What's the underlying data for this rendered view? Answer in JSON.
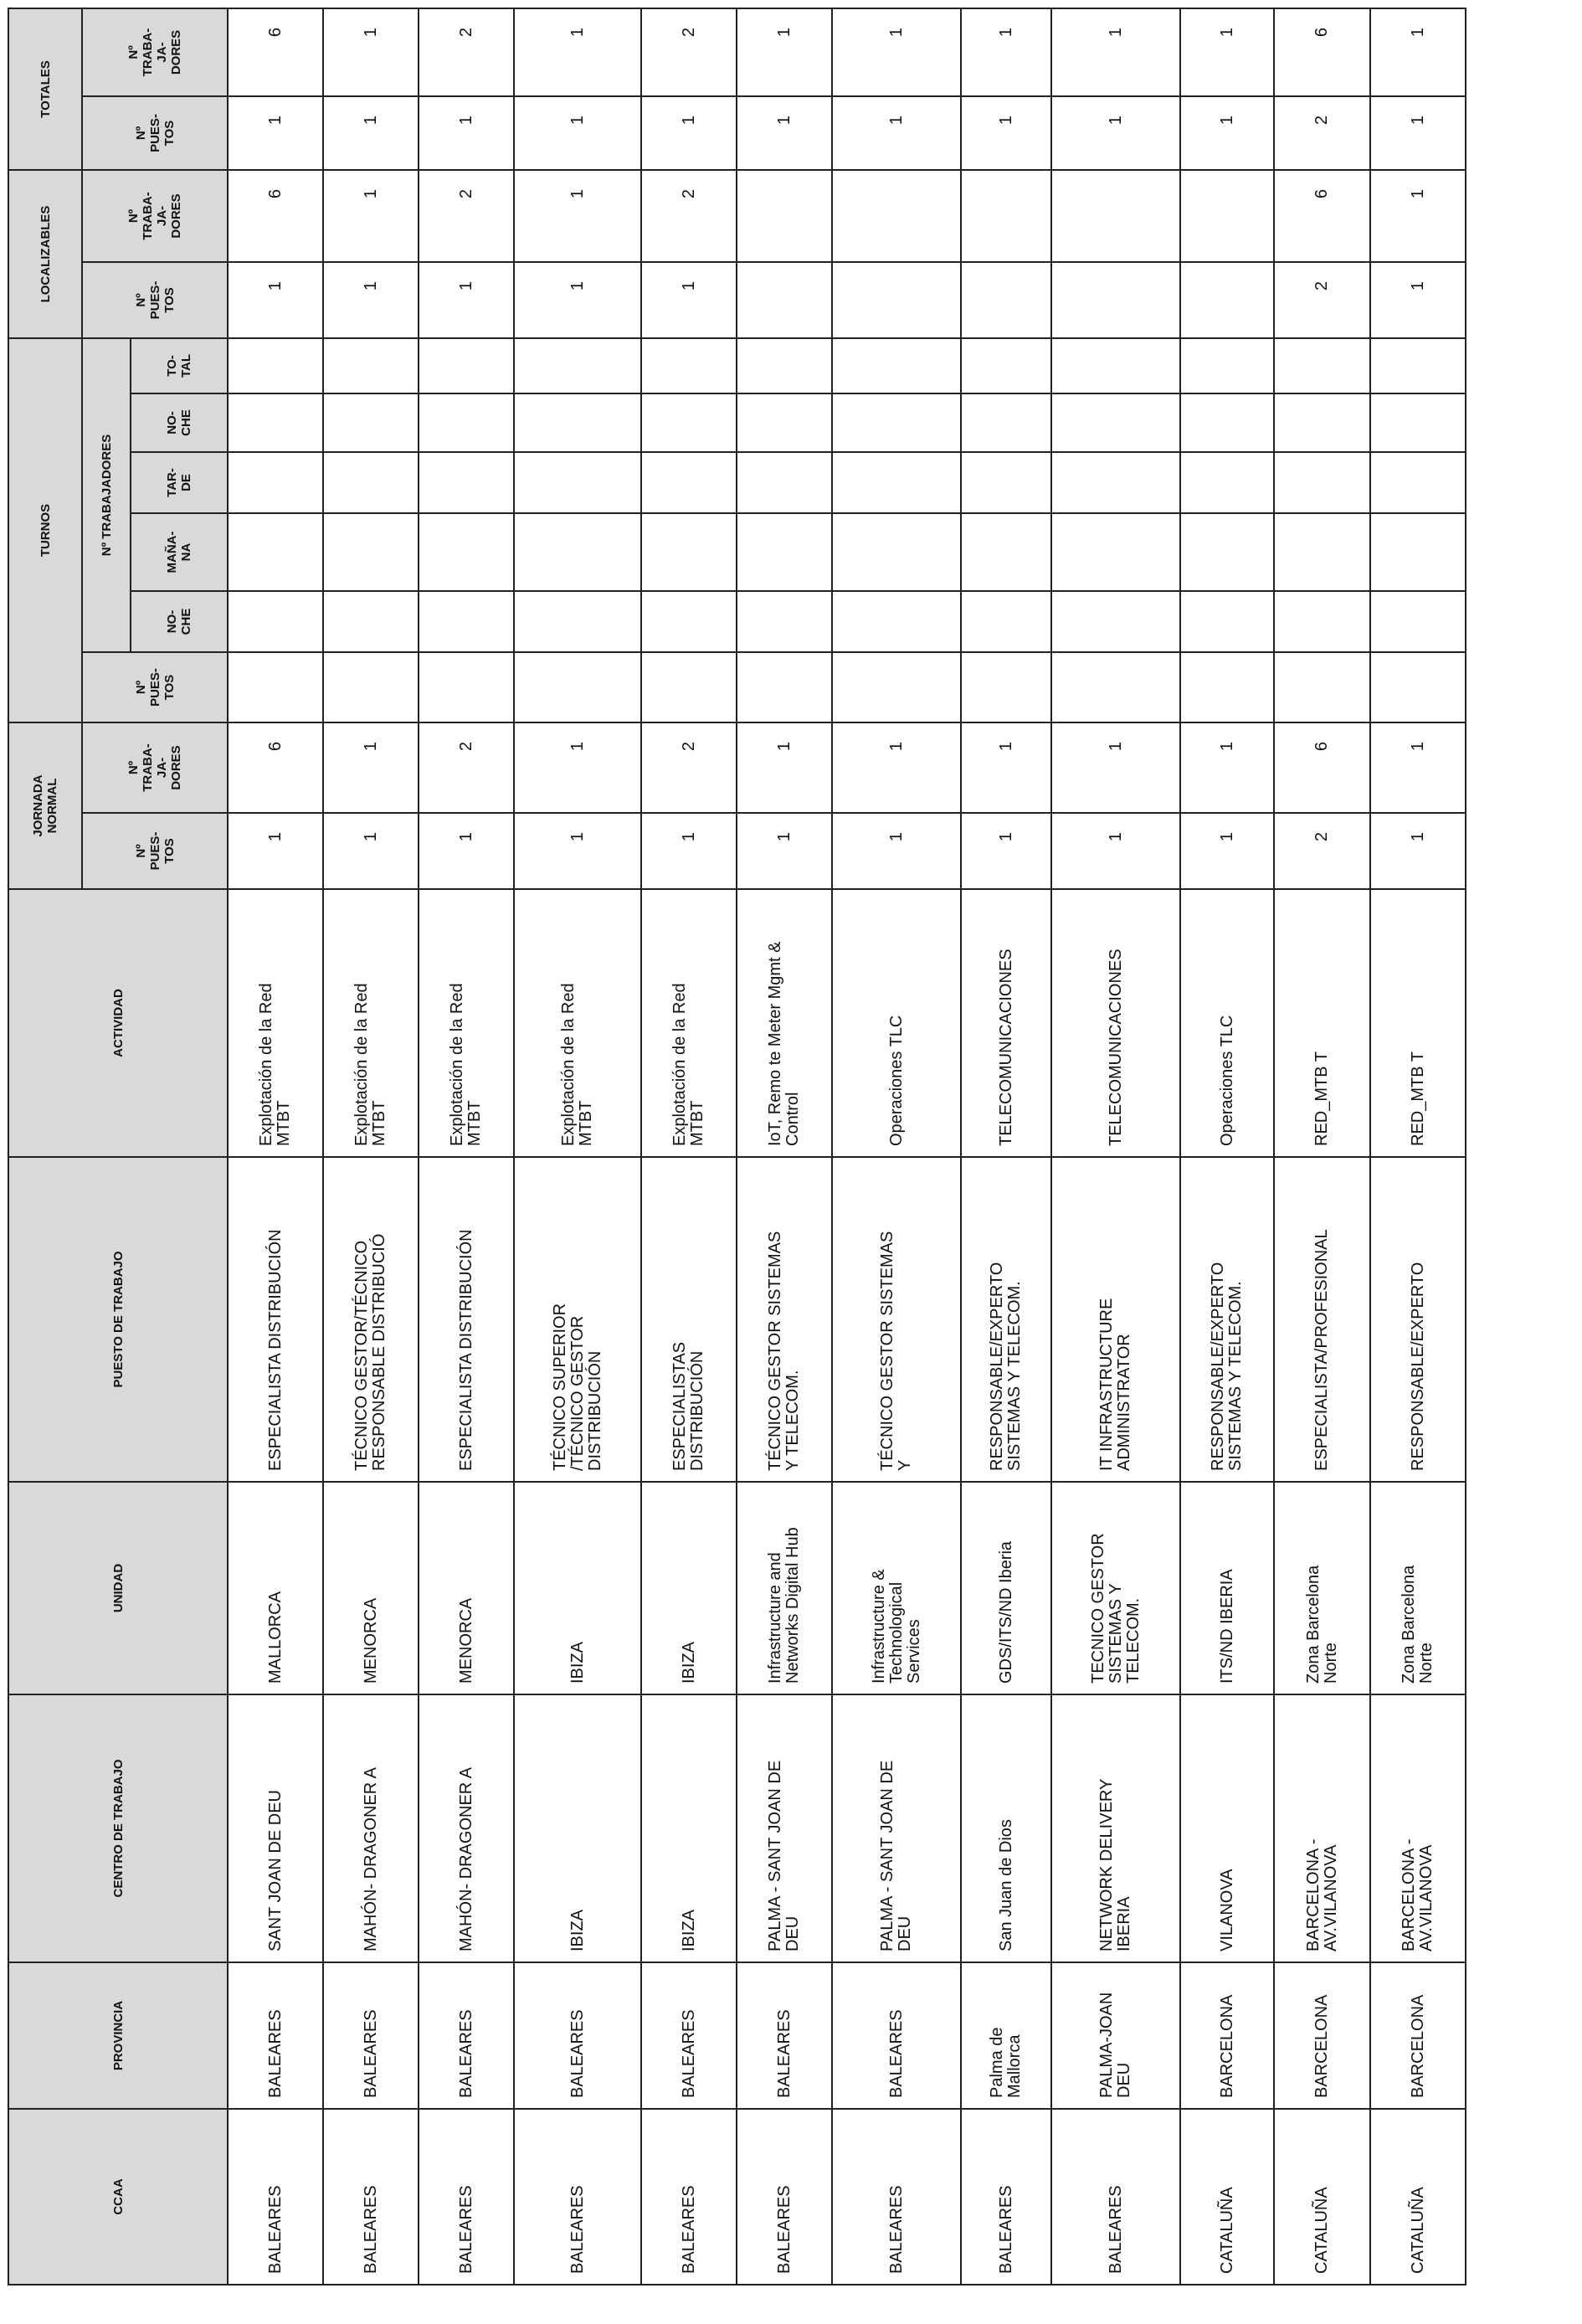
{
  "headers": {
    "ccaa": "CCAA",
    "provincia": "PROVINCIA",
    "centro": "CENTRO DE TRABAJO",
    "unidad": "UNIDAD",
    "puesto": "PUESTO DE TRABAJO",
    "actividad": "ACTIVIDAD",
    "jornada": "JORNADA\nNORMAL",
    "turnos": "TURNOS",
    "localizables": "LOCALIZABLES",
    "totales": "TOTALES",
    "n_puestos": "Nº\nPUES-\nTOS",
    "n_trabajadores": "Nº\nTRABA-\nJA-\nDORES",
    "n_trabajadores_group": "Nº TRABAJADORES",
    "noche": "NO-\nCHE",
    "manana": "MAÑA-\nNA",
    "tarde": "TAR-\nDE",
    "total": "TO-\nTAL"
  },
  "rows": [
    {
      "ccaa": "BALEARES",
      "provincia": "BALEARES",
      "centro": "SANT JOAN DE DEU",
      "unidad": "MALLORCA",
      "puesto": "ESPECIALISTA DISTRIBUCIÓN",
      "actividad": "Explotación de la Red\nMTBT",
      "jn_puestos": "1",
      "jn_trab": "6",
      "t_puestos": "",
      "t_noche1": "",
      "t_manana": "",
      "t_tarde": "",
      "t_noche2": "",
      "t_total": "",
      "loc_puestos": "1",
      "loc_trab": "6",
      "tot_puestos": "1",
      "tot_trab": "6"
    },
    {
      "ccaa": "BALEARES",
      "provincia": "BALEARES",
      "centro": "MAHÓN- DRAGONER A",
      "unidad": "MENORCA",
      "puesto": "TÉCNICO GESTOR/TÉCNICO\nRESPONSABLE DISTRIBUCIÓ",
      "actividad": "Explotación de la Red\nMTBT",
      "jn_puestos": "1",
      "jn_trab": "1",
      "t_puestos": "",
      "t_noche1": "",
      "t_manana": "",
      "t_tarde": "",
      "t_noche2": "",
      "t_total": "",
      "loc_puestos": "1",
      "loc_trab": "1",
      "tot_puestos": "1",
      "tot_trab": "1"
    },
    {
      "ccaa": "BALEARES",
      "provincia": "BALEARES",
      "centro": "MAHÓN- DRAGONER A",
      "unidad": "MENORCA",
      "puesto": "ESPECIALISTA DISTRIBUCIÓN",
      "actividad": "Explotación de la Red\nMTBT",
      "jn_puestos": "1",
      "jn_trab": "2",
      "t_puestos": "",
      "t_noche1": "",
      "t_manana": "",
      "t_tarde": "",
      "t_noche2": "",
      "t_total": "",
      "loc_puestos": "1",
      "loc_trab": "2",
      "tot_puestos": "1",
      "tot_trab": "2"
    },
    {
      "ccaa": "BALEARES",
      "provincia": "BALEARES",
      "centro": "IBIZA",
      "unidad": "IBIZA",
      "puesto": "TÉCNICO SUPERIOR\n/TÉCNICO GESTOR\nDISTRIBUCIÓN",
      "actividad": "Explotación de la Red\nMTBT",
      "jn_puestos": "1",
      "jn_trab": "1",
      "t_puestos": "",
      "t_noche1": "",
      "t_manana": "",
      "t_tarde": "",
      "t_noche2": "",
      "t_total": "",
      "loc_puestos": "1",
      "loc_trab": "1",
      "tot_puestos": "1",
      "tot_trab": "1"
    },
    {
      "ccaa": "BALEARES",
      "provincia": "BALEARES",
      "centro": "IBIZA",
      "unidad": "IBIZA",
      "puesto": "ESPECIALISTAS\nDISTRIBUCIÓN",
      "actividad": "Explotación de la Red\nMTBT",
      "jn_puestos": "1",
      "jn_trab": "2",
      "t_puestos": "",
      "t_noche1": "",
      "t_manana": "",
      "t_tarde": "",
      "t_noche2": "",
      "t_total": "",
      "loc_puestos": "1",
      "loc_trab": "2",
      "tot_puestos": "1",
      "tot_trab": "2"
    },
    {
      "ccaa": "BALEARES",
      "provincia": "BALEARES",
      "centro": "PALMA - SANT JOAN DE\nDEU",
      "unidad": "Infrastructure and\nNetworks Digital Hub",
      "puesto": "TÉCNICO GESTOR SISTEMAS\nY TELECOM.",
      "actividad": "IoT, Remo te Meter Mgmt &\nControl",
      "jn_puestos": "1",
      "jn_trab": "1",
      "t_puestos": "",
      "t_noche1": "",
      "t_manana": "",
      "t_tarde": "",
      "t_noche2": "",
      "t_total": "",
      "loc_puestos": "",
      "loc_trab": "",
      "tot_puestos": "1",
      "tot_trab": "1"
    },
    {
      "ccaa": "BALEARES",
      "provincia": "BALEARES",
      "centro": "PALMA - SANT JOAN DE\nDEU",
      "unidad": "Infrastructure &\nTechnological\nServices",
      "puesto": "TÉCNICO GESTOR SISTEMAS\nY",
      "actividad": "Operaciones TLC",
      "jn_puestos": "1",
      "jn_trab": "1",
      "t_puestos": "",
      "t_noche1": "",
      "t_manana": "",
      "t_tarde": "",
      "t_noche2": "",
      "t_total": "",
      "loc_puestos": "",
      "loc_trab": "",
      "tot_puestos": "1",
      "tot_trab": "1"
    },
    {
      "ccaa": "BALEARES",
      "provincia": "Palma de\nMallorca",
      "centro": "San Juan de Dios",
      "unidad": "GDS/ITS/ND Iberia",
      "puesto": "RESPONSABLE/EXPERTO\nSISTEMAS Y TELECOM.",
      "actividad": "TELECOMUNICACIONES",
      "jn_puestos": "1",
      "jn_trab": "1",
      "t_puestos": "",
      "t_noche1": "",
      "t_manana": "",
      "t_tarde": "",
      "t_noche2": "",
      "t_total": "",
      "loc_puestos": "",
      "loc_trab": "",
      "tot_puestos": "1",
      "tot_trab": "1"
    },
    {
      "ccaa": "BALEARES",
      "provincia": "PALMA-JOAN\nDEU",
      "centro": "NETWORK DELIVERY\nIBERIA",
      "unidad": "TECNICO GESTOR\nSISTEMAS Y\nTELECOM.",
      "puesto": "IT INFRASTRUCTURE\nADMINISTRATOR",
      "actividad": "TELECOMUNICACIONES",
      "jn_puestos": "1",
      "jn_trab": "1",
      "t_puestos": "",
      "t_noche1": "",
      "t_manana": "",
      "t_tarde": "",
      "t_noche2": "",
      "t_total": "",
      "loc_puestos": "",
      "loc_trab": "",
      "tot_puestos": "1",
      "tot_trab": "1"
    },
    {
      "ccaa": "CATALUÑA",
      "provincia": "BARCELONA",
      "centro": "VILANOVA",
      "unidad": "ITS/ND IBERIA",
      "puesto": "RESPONSABLE/EXPERTO\nSISTEMAS Y TELECOM.",
      "actividad": "Operaciones TLC",
      "jn_puestos": "1",
      "jn_trab": "1",
      "t_puestos": "",
      "t_noche1": "",
      "t_manana": "",
      "t_tarde": "",
      "t_noche2": "",
      "t_total": "",
      "loc_puestos": "",
      "loc_trab": "",
      "tot_puestos": "1",
      "tot_trab": "1"
    },
    {
      "ccaa": "CATALUÑA",
      "provincia": "BARCELONA",
      "centro": "BARCELONA -\nAV.VILANOVA",
      "unidad": "Zona Barcelona\nNorte",
      "puesto": "ESPECIALISTA/PROFESIONAL",
      "actividad": "RED_MTB T",
      "jn_puestos": "2",
      "jn_trab": "6",
      "t_puestos": "",
      "t_noche1": "",
      "t_manana": "",
      "t_tarde": "",
      "t_noche2": "",
      "t_total": "",
      "loc_puestos": "2",
      "loc_trab": "6",
      "tot_puestos": "2",
      "tot_trab": "6"
    },
    {
      "ccaa": "CATALUÑA",
      "provincia": "BARCELONA",
      "centro": "BARCELONA -\nAV.VILANOVA",
      "unidad": "Zona Barcelona\nNorte",
      "puesto": "RESPONSABLE/EXPERTO",
      "actividad": "RED_MTB T",
      "jn_puestos": "1",
      "jn_trab": "1",
      "t_puestos": "",
      "t_noche1": "",
      "t_manana": "",
      "t_tarde": "",
      "t_noche2": "",
      "t_total": "",
      "loc_puestos": "1",
      "loc_trab": "1",
      "tot_puestos": "1",
      "tot_trab": "1"
    }
  ],
  "colors": {
    "header_bg": "#d9d9d9",
    "border": "#222222"
  }
}
